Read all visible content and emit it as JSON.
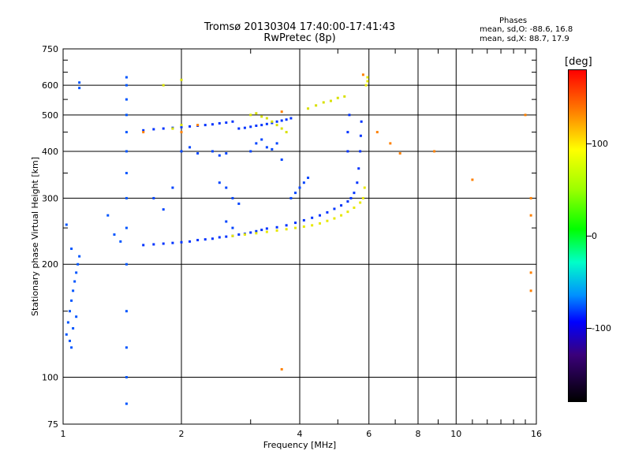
{
  "chart_data": {
    "type": "scatter",
    "title": "Tromsø 20130304 17:40:00-17:41:43",
    "subtitle": "RwPretec (8p)",
    "xlabel": "Frequency [MHz]",
    "ylabel": "Stationary phase Virtual Height [km]",
    "x_scale": "log",
    "y_scale": "log",
    "xlim": [
      1,
      16
    ],
    "ylim": [
      75,
      750
    ],
    "x_ticks": [
      1,
      2,
      4,
      6,
      8,
      10,
      16
    ],
    "x_tick_labels": [
      "1",
      "2",
      "4",
      "6",
      "8",
      "10",
      "16"
    ],
    "y_ticks": [
      75,
      100,
      200,
      300,
      400,
      500,
      600,
      750
    ],
    "y_tick_labels": [
      "75",
      "100",
      "200",
      "300",
      "400",
      "500",
      "600",
      "750"
    ],
    "grid": true,
    "phases": {
      "heading": "Phases",
      "line_o": "mean, sd,O: -88.6, 16.8",
      "line_x": "mean, sd,X:  88.7, 17.9"
    },
    "colorbar": {
      "unit": "[deg]",
      "tick_labels": [
        "100",
        "0",
        "-100"
      ],
      "tick_values": [
        100,
        0,
        -100
      ],
      "range": [
        -180,
        180
      ]
    },
    "series": [
      {
        "trace": "O-mode F-layer trace (blue)",
        "color": "#0033ff",
        "points": [
          [
            1.6,
            225
          ],
          [
            1.7,
            226
          ],
          [
            1.8,
            227
          ],
          [
            1.9,
            228
          ],
          [
            2.0,
            229
          ],
          [
            2.1,
            230
          ],
          [
            2.2,
            232
          ],
          [
            2.3,
            233
          ],
          [
            2.4,
            234
          ],
          [
            2.5,
            236
          ],
          [
            2.6,
            237
          ],
          [
            2.7,
            238
          ],
          [
            2.8,
            240
          ],
          [
            2.9,
            241
          ],
          [
            3.0,
            243
          ],
          [
            3.1,
            245
          ],
          [
            3.2,
            247
          ],
          [
            3.3,
            249
          ],
          [
            3.5,
            251
          ],
          [
            3.7,
            254
          ],
          [
            3.9,
            258
          ],
          [
            4.1,
            262
          ],
          [
            4.3,
            266
          ],
          [
            4.5,
            270
          ],
          [
            4.7,
            275
          ],
          [
            4.9,
            281
          ],
          [
            5.1,
            287
          ],
          [
            5.3,
            294
          ],
          [
            5.4,
            300
          ],
          [
            5.5,
            310
          ],
          [
            5.6,
            330
          ],
          [
            5.65,
            360
          ],
          [
            5.7,
            400
          ],
          [
            5.72,
            440
          ],
          [
            5.74,
            480
          ],
          [
            5.3,
            400
          ],
          [
            5.3,
            450
          ],
          [
            5.35,
            500
          ]
        ]
      },
      {
        "trace": "X-mode F-layer trace (yellow)",
        "color": "#e8e800",
        "points": [
          [
            2.7,
            238
          ],
          [
            2.9,
            240
          ],
          [
            3.1,
            242
          ],
          [
            3.3,
            244
          ],
          [
            3.5,
            246
          ],
          [
            3.7,
            248
          ],
          [
            3.9,
            250
          ],
          [
            4.1,
            252
          ],
          [
            4.3,
            254
          ],
          [
            4.5,
            257
          ],
          [
            4.7,
            261
          ],
          [
            4.9,
            265
          ],
          [
            5.1,
            270
          ],
          [
            5.3,
            276
          ],
          [
            5.5,
            283
          ],
          [
            5.7,
            292
          ],
          [
            5.8,
            300
          ],
          [
            5.85,
            320
          ],
          [
            5.9,
            600
          ],
          [
            5.95,
            615
          ],
          [
            5.95,
            630
          ]
        ]
      },
      {
        "trace": "Upper E/F2 trace (blue)",
        "color": "#0033ff",
        "points": [
          [
            1.6,
            455
          ],
          [
            1.7,
            458
          ],
          [
            1.8,
            460
          ],
          [
            1.9,
            462
          ],
          [
            2.0,
            464
          ],
          [
            2.1,
            466
          ],
          [
            2.2,
            468
          ],
          [
            2.3,
            470
          ],
          [
            2.4,
            472
          ],
          [
            2.5,
            475
          ],
          [
            2.6,
            477
          ],
          [
            2.7,
            480
          ],
          [
            2.8,
            460
          ],
          [
            2.9,
            462
          ],
          [
            3.0,
            465
          ],
          [
            3.1,
            468
          ],
          [
            3.2,
            470
          ],
          [
            3.3,
            473
          ],
          [
            3.4,
            476
          ],
          [
            3.5,
            480
          ],
          [
            3.6,
            483
          ],
          [
            3.7,
            486
          ],
          [
            3.8,
            490
          ]
        ]
      },
      {
        "trace": "Upper yellow scatter",
        "color": "#d8e000",
        "points": [
          [
            3.0,
            500
          ],
          [
            3.1,
            505
          ],
          [
            3.2,
            495
          ],
          [
            3.3,
            490
          ],
          [
            3.4,
            480
          ],
          [
            3.5,
            470
          ],
          [
            3.6,
            460
          ],
          [
            3.7,
            450
          ],
          [
            4.2,
            520
          ],
          [
            4.4,
            530
          ],
          [
            4.6,
            540
          ],
          [
            4.8,
            545
          ],
          [
            5.0,
            555
          ],
          [
            5.2,
            560
          ],
          [
            1.9,
            460
          ],
          [
            2.0,
            470
          ],
          [
            1.8,
            600
          ],
          [
            2.0,
            620
          ]
        ]
      },
      {
        "trace": "Low-frequency blue cluster",
        "color": "#0055ff",
        "points": [
          [
            1.02,
            130
          ],
          [
            1.03,
            140
          ],
          [
            1.04,
            150
          ],
          [
            1.05,
            160
          ],
          [
            1.06,
            170
          ],
          [
            1.07,
            180
          ],
          [
            1.08,
            190
          ],
          [
            1.09,
            200
          ],
          [
            1.1,
            210
          ],
          [
            1.05,
            120
          ],
          [
            1.04,
            125
          ],
          [
            1.06,
            135
          ],
          [
            1.08,
            145
          ],
          [
            1.02,
            255
          ],
          [
            1.05,
            220
          ],
          [
            1.1,
            610
          ],
          [
            1.1,
            590
          ],
          [
            1.3,
            270
          ],
          [
            1.35,
            240
          ],
          [
            1.4,
            230
          ],
          [
            1.45,
            600
          ],
          [
            1.45,
            500
          ],
          [
            1.45,
            400
          ],
          [
            1.45,
            300
          ],
          [
            1.45,
            250
          ],
          [
            1.45,
            200
          ],
          [
            1.45,
            150
          ],
          [
            1.45,
            120
          ],
          [
            1.45,
            100
          ],
          [
            1.45,
            85
          ],
          [
            1.45,
            630
          ],
          [
            1.45,
            550
          ],
          [
            1.45,
            450
          ],
          [
            1.45,
            350
          ]
        ]
      },
      {
        "trace": "Mid-band blue clusters",
        "color": "#0044ff",
        "points": [
          [
            1.7,
            300
          ],
          [
            1.8,
            280
          ],
          [
            1.9,
            320
          ],
          [
            2.0,
            400
          ],
          [
            2.1,
            410
          ],
          [
            2.2,
            395
          ],
          [
            2.4,
            400
          ],
          [
            2.5,
            390
          ],
          [
            2.6,
            395
          ],
          [
            2.5,
            330
          ],
          [
            2.6,
            320
          ],
          [
            2.7,
            300
          ],
          [
            2.8,
            290
          ],
          [
            2.6,
            260
          ],
          [
            2.7,
            250
          ],
          [
            3.0,
            400
          ],
          [
            3.1,
            420
          ],
          [
            3.2,
            430
          ],
          [
            3.3,
            410
          ],
          [
            3.4,
            405
          ],
          [
            3.5,
            420
          ],
          [
            3.6,
            380
          ],
          [
            3.8,
            300
          ],
          [
            3.9,
            310
          ],
          [
            4.0,
            320
          ],
          [
            4.1,
            330
          ],
          [
            4.2,
            340
          ]
        ]
      },
      {
        "trace": "Mixed-color noise points",
        "color": "#ff8000",
        "points": [
          [
            1.6,
            450
          ],
          [
            2.2,
            470
          ],
          [
            3.6,
            510
          ],
          [
            5.8,
            640
          ],
          [
            6.3,
            450
          ],
          [
            6.8,
            420
          ],
          [
            7.2,
            395
          ],
          [
            8.8,
            400
          ],
          [
            11.0,
            336
          ],
          [
            15.0,
            500
          ],
          [
            15.5,
            300
          ],
          [
            15.5,
            270
          ],
          [
            15.5,
            190
          ],
          [
            15.5,
            170
          ],
          [
            3.6,
            105
          ],
          [
            2.0,
            450
          ]
        ]
      }
    ]
  }
}
